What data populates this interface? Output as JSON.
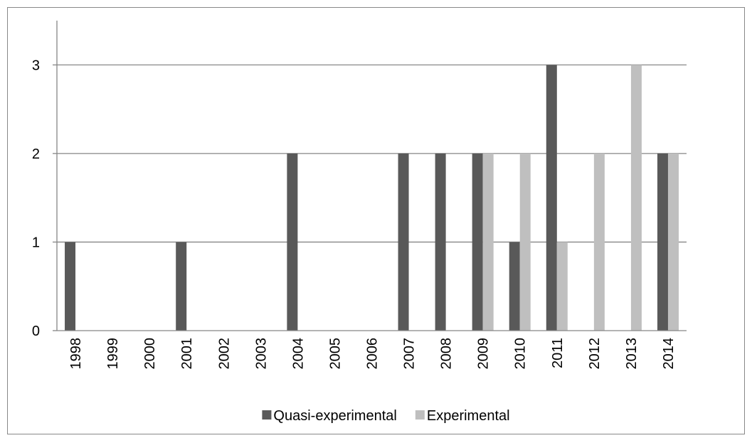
{
  "chart_data": {
    "type": "bar",
    "categories": [
      "1998",
      "1999",
      "2000",
      "2001",
      "2002",
      "2003",
      "2004",
      "2005",
      "2006",
      "2007",
      "2008",
      "2009",
      "2010",
      "2011",
      "2012",
      "2013",
      "2014"
    ],
    "series": [
      {
        "name": "Quasi-experimental",
        "color": "#595959",
        "values": [
          1,
          0,
          0,
          1,
          0,
          0,
          2,
          0,
          0,
          2,
          2,
          2,
          1,
          3,
          0,
          0,
          2
        ]
      },
      {
        "name": "Experimental",
        "color": "#bfbfbf",
        "values": [
          0,
          0,
          0,
          0,
          0,
          0,
          0,
          0,
          0,
          0,
          0,
          2,
          2,
          1,
          2,
          3,
          2
        ]
      }
    ],
    "ylim": [
      0,
      3.5
    ],
    "yticks": [
      0,
      1,
      2,
      3
    ],
    "grid": true,
    "legend": "bottom"
  }
}
